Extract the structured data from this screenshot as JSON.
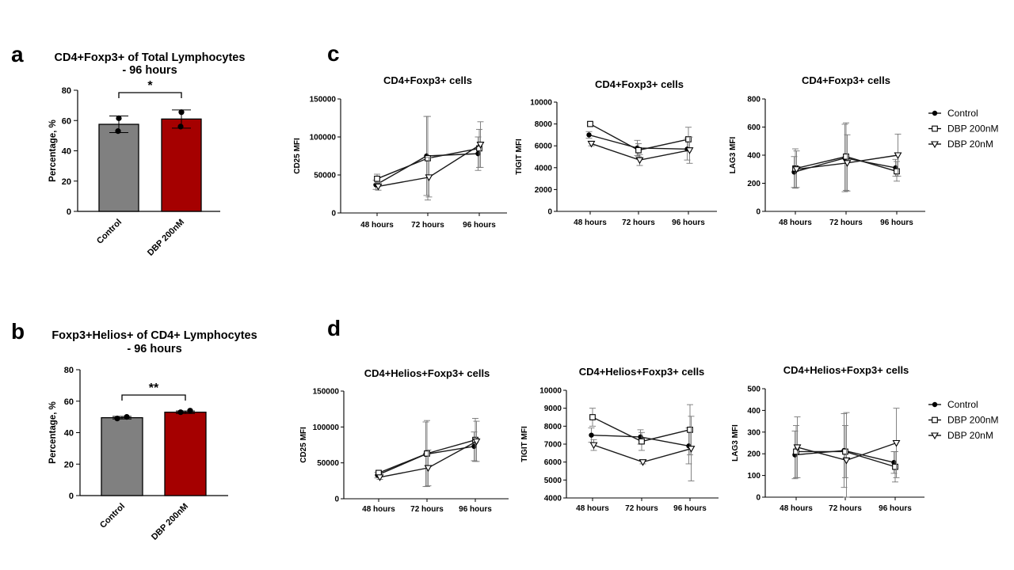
{
  "panel_labels": {
    "a": "a",
    "b": "b",
    "c": "c",
    "d": "d"
  },
  "legend_c": {
    "items": [
      "Control",
      "DBP 200nM",
      "DBP 20nM"
    ]
  },
  "legend_d": {
    "items": [
      "Control",
      "DBP 200nM",
      "DBP 20nM"
    ]
  },
  "colors": {
    "control_bar": "#808080",
    "dbp_bar": "#a50000",
    "axis": "#000000",
    "series": "#1a1a1a"
  },
  "chart_data": [
    {
      "id": "a",
      "type": "bar",
      "title_line1": "CD4+Foxp3+ of Total Lymphocytes",
      "title_line2": "- 96 hours",
      "categories": [
        "Control",
        "DBP 200nM"
      ],
      "values": [
        57.5,
        61
      ],
      "errors": [
        5.5,
        6
      ],
      "points": [
        [
          61.5,
          53
        ],
        [
          65.5,
          56
        ]
      ],
      "ylabel": "Percentage, %",
      "ylim": [
        0,
        80
      ],
      "yticks": [
        0,
        20,
        40,
        60,
        80
      ],
      "significance": "*"
    },
    {
      "id": "b",
      "type": "bar",
      "title_line1": "Foxp3+Helios+ of CD4+ Lymphocytes",
      "title_line2": "-  96 hours",
      "categories": [
        "Control",
        "DBP 200nM"
      ],
      "values": [
        49.5,
        53
      ],
      "errors": [
        0.8,
        0.8
      ],
      "points": [
        [
          49,
          50
        ],
        [
          53,
          54
        ]
      ],
      "ylabel": "Percentage, %",
      "ylim": [
        0,
        80
      ],
      "yticks": [
        0,
        20,
        40,
        60,
        80
      ],
      "significance": "**"
    },
    {
      "id": "c1",
      "type": "line",
      "title": "CD4+Foxp3+ cells",
      "x": [
        "48 hours",
        "72 hours",
        "96 hours"
      ],
      "ylabel": "CD25 MFI",
      "ylim": [
        0,
        150000
      ],
      "yticks": [
        0,
        50000,
        100000,
        150000
      ],
      "series": [
        {
          "name": "Control",
          "values": [
            37000,
            75000,
            78000
          ],
          "errors": [
            6000,
            52000,
            22000
          ]
        },
        {
          "name": "DBP 200nM",
          "values": [
            45000,
            72000,
            85000
          ],
          "errors": [
            6000,
            55000,
            25000
          ]
        },
        {
          "name": "DBP 20nM",
          "values": [
            35000,
            47000,
            90000
          ],
          "errors": [
            5000,
            26000,
            30000
          ]
        }
      ]
    },
    {
      "id": "c2",
      "type": "line",
      "title": "CD4+Foxp3+ cells",
      "x": [
        "48 hours",
        "72 hours",
        "96 hours"
      ],
      "ylabel": "TIGIT MFI",
      "ylim": [
        0,
        10000
      ],
      "yticks": [
        0,
        2000,
        4000,
        6000,
        8000,
        10000
      ],
      "series": [
        {
          "name": "Control",
          "values": [
            7000,
            5800,
            5700
          ],
          "errors": [
            300,
            700,
            1000
          ]
        },
        {
          "name": "DBP 200nM",
          "values": [
            8000,
            5600,
            6600
          ],
          "errors": [
            150,
            600,
            1100
          ]
        },
        {
          "name": "DBP 20nM",
          "values": [
            6200,
            4700,
            5600
          ],
          "errors": [
            200,
            500,
            1200
          ]
        }
      ]
    },
    {
      "id": "c3",
      "type": "line",
      "title": "CD4+Foxp3+ cells",
      "x": [
        "48 hours",
        "72 hours",
        "96 hours"
      ],
      "ylabel": "LAG3 MFI",
      "ylim": [
        0,
        800
      ],
      "yticks": [
        0,
        200,
        400,
        600,
        800
      ],
      "series": [
        {
          "name": "Control",
          "values": [
            280,
            380,
            310
          ],
          "errors": [
            110,
            240,
            60
          ]
        },
        {
          "name": "DBP 200nM",
          "values": [
            305,
            390,
            285
          ],
          "errors": [
            140,
            240,
            70
          ]
        },
        {
          "name": "DBP 20nM",
          "values": [
            300,
            345,
            400
          ],
          "errors": [
            130,
            200,
            150
          ]
        }
      ]
    },
    {
      "id": "d1",
      "type": "line",
      "title": "CD4+Helios+Foxp3+ cells",
      "x": [
        "48 hours",
        "72 hours",
        "96 hours"
      ],
      "ylabel": "CD25  MFI",
      "ylim": [
        0,
        150000
      ],
      "yticks": [
        0,
        50000,
        100000,
        150000
      ],
      "series": [
        {
          "name": "Control",
          "values": [
            33000,
            62000,
            73000
          ],
          "errors": [
            4000,
            45000,
            20000
          ]
        },
        {
          "name": "DBP 200nM",
          "values": [
            36000,
            63000,
            82000
          ],
          "errors": [
            3000,
            46000,
            30000
          ]
        },
        {
          "name": "DBP 20nM",
          "values": [
            30000,
            43000,
            80000
          ],
          "errors": [
            3000,
            25000,
            28000
          ]
        }
      ]
    },
    {
      "id": "d2",
      "type": "line",
      "title": "CD4+Helios+Foxp3+ cells",
      "x": [
        "48 hours",
        "72 hours",
        "96 hours"
      ],
      "ylabel": "TIGIT MFI",
      "ylim": [
        4000,
        10000
      ],
      "yticks": [
        4000,
        5000,
        6000,
        7000,
        8000,
        9000,
        10000
      ],
      "series": [
        {
          "name": "Control",
          "values": [
            7500,
            7400,
            6900
          ],
          "errors": [
            400,
            400,
            1000
          ]
        },
        {
          "name": "DBP 200nM",
          "values": [
            8500,
            7150,
            7800
          ],
          "errors": [
            500,
            500,
            1400
          ]
        },
        {
          "name": "DBP 20nM",
          "values": [
            6950,
            6000,
            6750
          ],
          "errors": [
            300,
            100,
            1800
          ]
        }
      ]
    },
    {
      "id": "d3",
      "type": "line",
      "title": "CD4+Helios+Foxp3+ cells",
      "x": [
        "48 hours",
        "72 hours",
        "96 hours"
      ],
      "ylabel": "LAG3 MFI",
      "ylim": [
        0,
        500
      ],
      "yticks": [
        0,
        100,
        200,
        300,
        400,
        500
      ],
      "series": [
        {
          "name": "Control",
          "values": [
            195,
            215,
            160
          ],
          "errors": [
            110,
            170,
            50
          ]
        },
        {
          "name": "DBP 200nM",
          "values": [
            210,
            210,
            140
          ],
          "errors": [
            120,
            120,
            70
          ]
        },
        {
          "name": "DBP 20nM",
          "values": [
            230,
            170,
            250
          ],
          "errors": [
            140,
            220,
            160
          ]
        }
      ]
    }
  ]
}
